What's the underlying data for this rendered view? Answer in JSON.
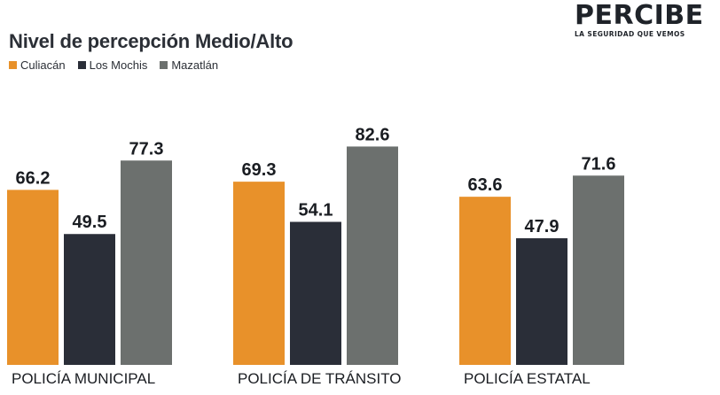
{
  "logo": {
    "wordmark": "PERCIBE",
    "tagline": "LA SEGURIDAD QUE VEMOS"
  },
  "chart_data": {
    "type": "bar",
    "title": "Nivel de percepción Medio/Alto",
    "categories": [
      "POLICÍA MUNICIPAL",
      "POLICÍA DE TRÁNSITO",
      "POLICÍA ESTATAL"
    ],
    "series": [
      {
        "name": "Culiacán",
        "color": "#e8912a",
        "values": [
          66.2,
          69.3,
          63.6
        ]
      },
      {
        "name": "Los Mochis",
        "color": "#2a2e38",
        "values": [
          49.5,
          54.1,
          47.9
        ]
      },
      {
        "name": "Mazatlán",
        "color": "#6c706e",
        "values": [
          77.3,
          82.6,
          71.6
        ]
      }
    ],
    "ylim": [
      0,
      100
    ],
    "legend_position": "top-left",
    "grid": false
  }
}
